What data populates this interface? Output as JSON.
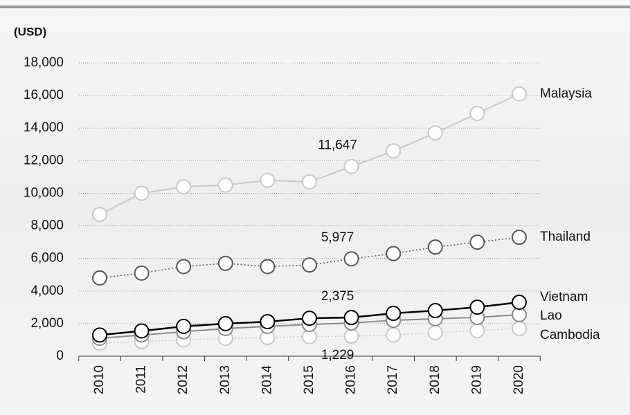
{
  "chart_data": {
    "type": "line",
    "unit_label": "(USD)",
    "x": [
      "2010",
      "2011",
      "2012",
      "2013",
      "2014",
      "2015",
      "2016",
      "2017",
      "2018",
      "2019",
      "2020"
    ],
    "ylim": [
      0,
      18000
    ],
    "yticks": [
      {
        "value": 0,
        "label": "0"
      },
      {
        "value": 2000,
        "label": "2,000"
      },
      {
        "value": 4000,
        "label": "4,000"
      },
      {
        "value": 6000,
        "label": "6,000"
      },
      {
        "value": 8000,
        "label": "8,000"
      },
      {
        "value": 10000,
        "label": "10,000"
      },
      {
        "value": 12000,
        "label": "12,000"
      },
      {
        "value": 14000,
        "label": "14,000"
      },
      {
        "value": 16000,
        "label": "16,000"
      },
      {
        "value": 18000,
        "label": "18,000"
      }
    ],
    "grid": true,
    "series": [
      {
        "name": "Malaysia",
        "color": "#c8c8c8",
        "style": "solid",
        "values": [
          8700,
          10000,
          10400,
          10500,
          10800,
          10700,
          11647,
          12600,
          13700,
          14900,
          16100
        ],
        "value_labels": [
          null,
          null,
          null,
          null,
          null,
          null,
          "11,647",
          null,
          null,
          null,
          null
        ]
      },
      {
        "name": "Thailand",
        "color": "#555555",
        "style": "dotted",
        "values": [
          4800,
          5100,
          5500,
          5700,
          5500,
          5600,
          5977,
          6300,
          6700,
          7000,
          7300
        ],
        "value_labels": [
          null,
          null,
          null,
          null,
          null,
          null,
          "5,977",
          null,
          null,
          null,
          null
        ]
      },
      {
        "name": "Vietnam",
        "color": "#000000",
        "style": "solid",
        "values": [
          1300,
          1550,
          1830,
          2000,
          2120,
          2330,
          2375,
          2630,
          2800,
          3010,
          3310
        ],
        "value_labels": [
          null,
          null,
          null,
          null,
          null,
          null,
          "2,375",
          null,
          null,
          null,
          null
        ]
      },
      {
        "name": "Lao",
        "color": "#8a8a8a",
        "style": "solid",
        "values": [
          1100,
          1300,
          1500,
          1700,
          1830,
          1950,
          2040,
          2200,
          2300,
          2380,
          2550
        ],
        "value_labels": [
          null,
          null,
          null,
          null,
          null,
          null,
          null,
          null,
          null,
          null,
          null
        ]
      },
      {
        "name": "Cambodia",
        "color": "#c8c8c8",
        "style": "dotted",
        "values": [
          800,
          900,
          1000,
          1100,
          1150,
          1200,
          1229,
          1300,
          1450,
          1570,
          1700
        ],
        "value_labels": [
          null,
          null,
          null,
          null,
          null,
          null,
          "1,229",
          null,
          null,
          null,
          null
        ]
      }
    ]
  }
}
